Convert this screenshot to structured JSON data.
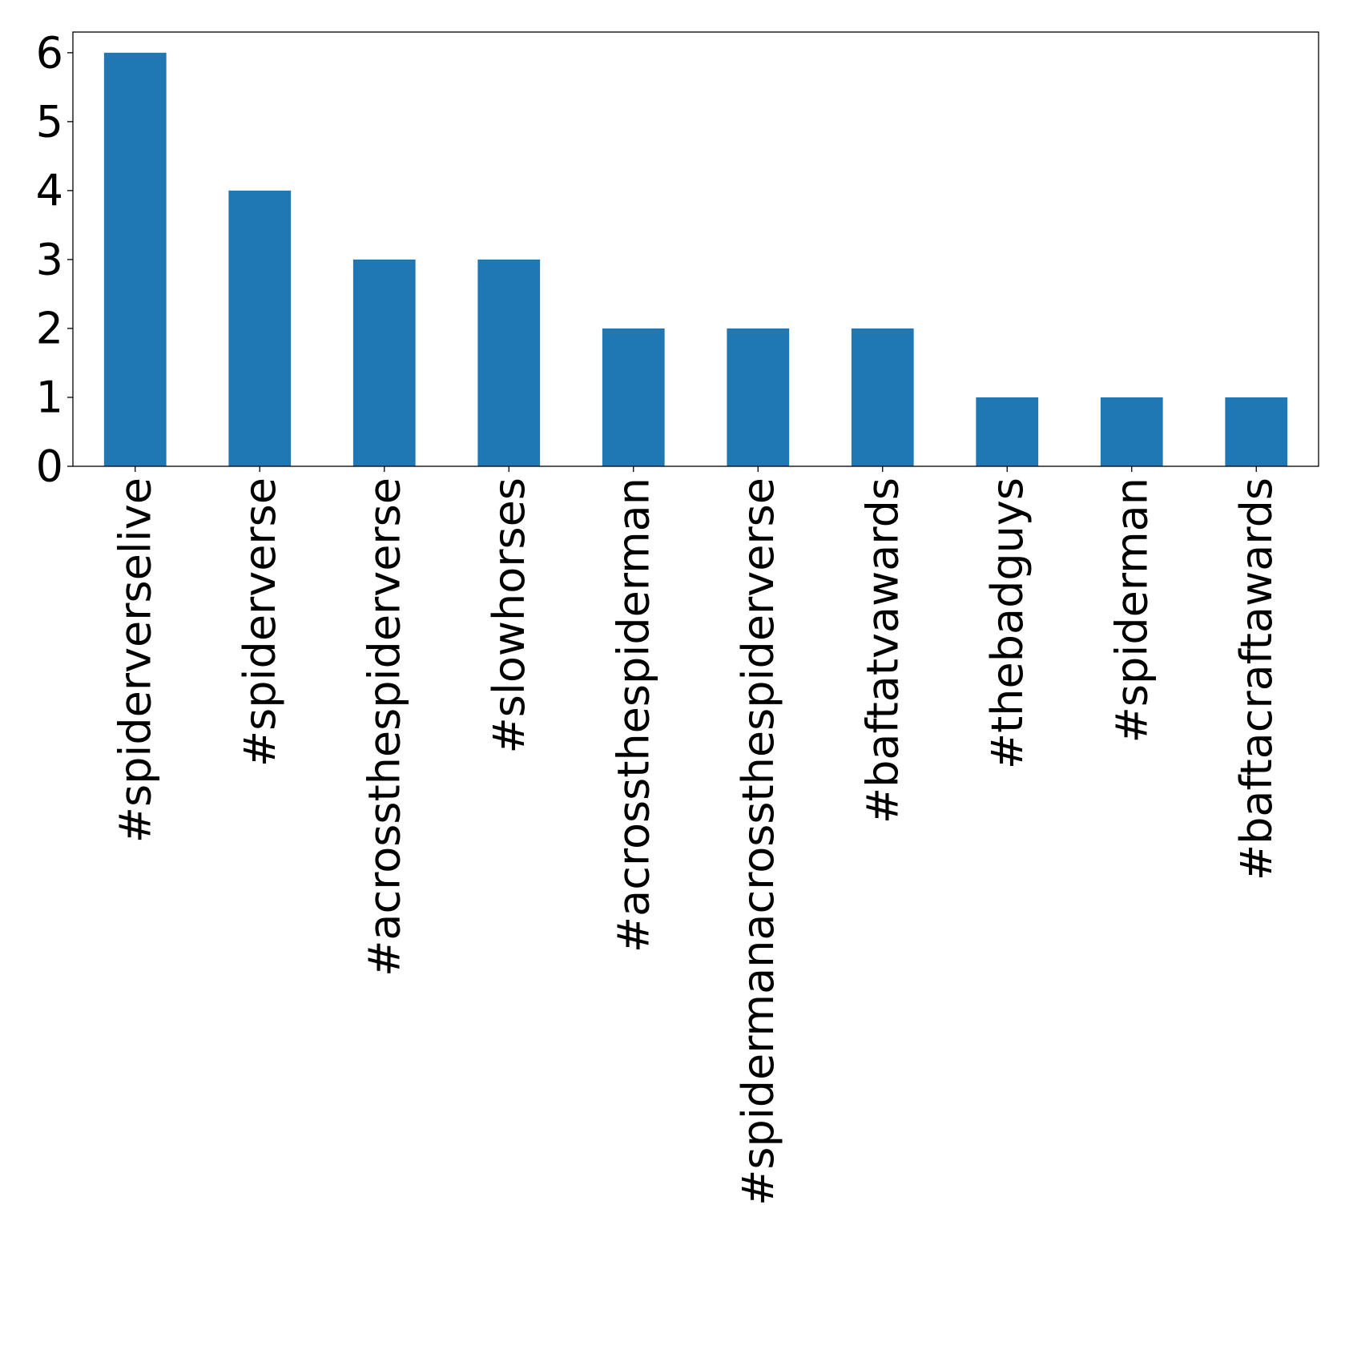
{
  "chart_data": {
    "type": "bar",
    "title": "",
    "xlabel": "",
    "ylabel": "",
    "categories": [
      "#spiderverselive",
      "#spiderverse",
      "#acrossthespiderverse",
      "#slowhorses",
      "#acrossthespiderman",
      "#spidermanacrossthespiderverse",
      "#baftatvawards",
      "#thebadguys",
      "#spiderman",
      "#baftacraftawards"
    ],
    "values": [
      6,
      4,
      3,
      3,
      2,
      2,
      2,
      1,
      1,
      1
    ],
    "ylim": [
      0,
      6.3
    ],
    "yticks": [
      0,
      1,
      2,
      3,
      4,
      5,
      6
    ],
    "grid": false,
    "legend": "none",
    "bar_color": "#1f77b4",
    "axis_color": "#000000"
  }
}
